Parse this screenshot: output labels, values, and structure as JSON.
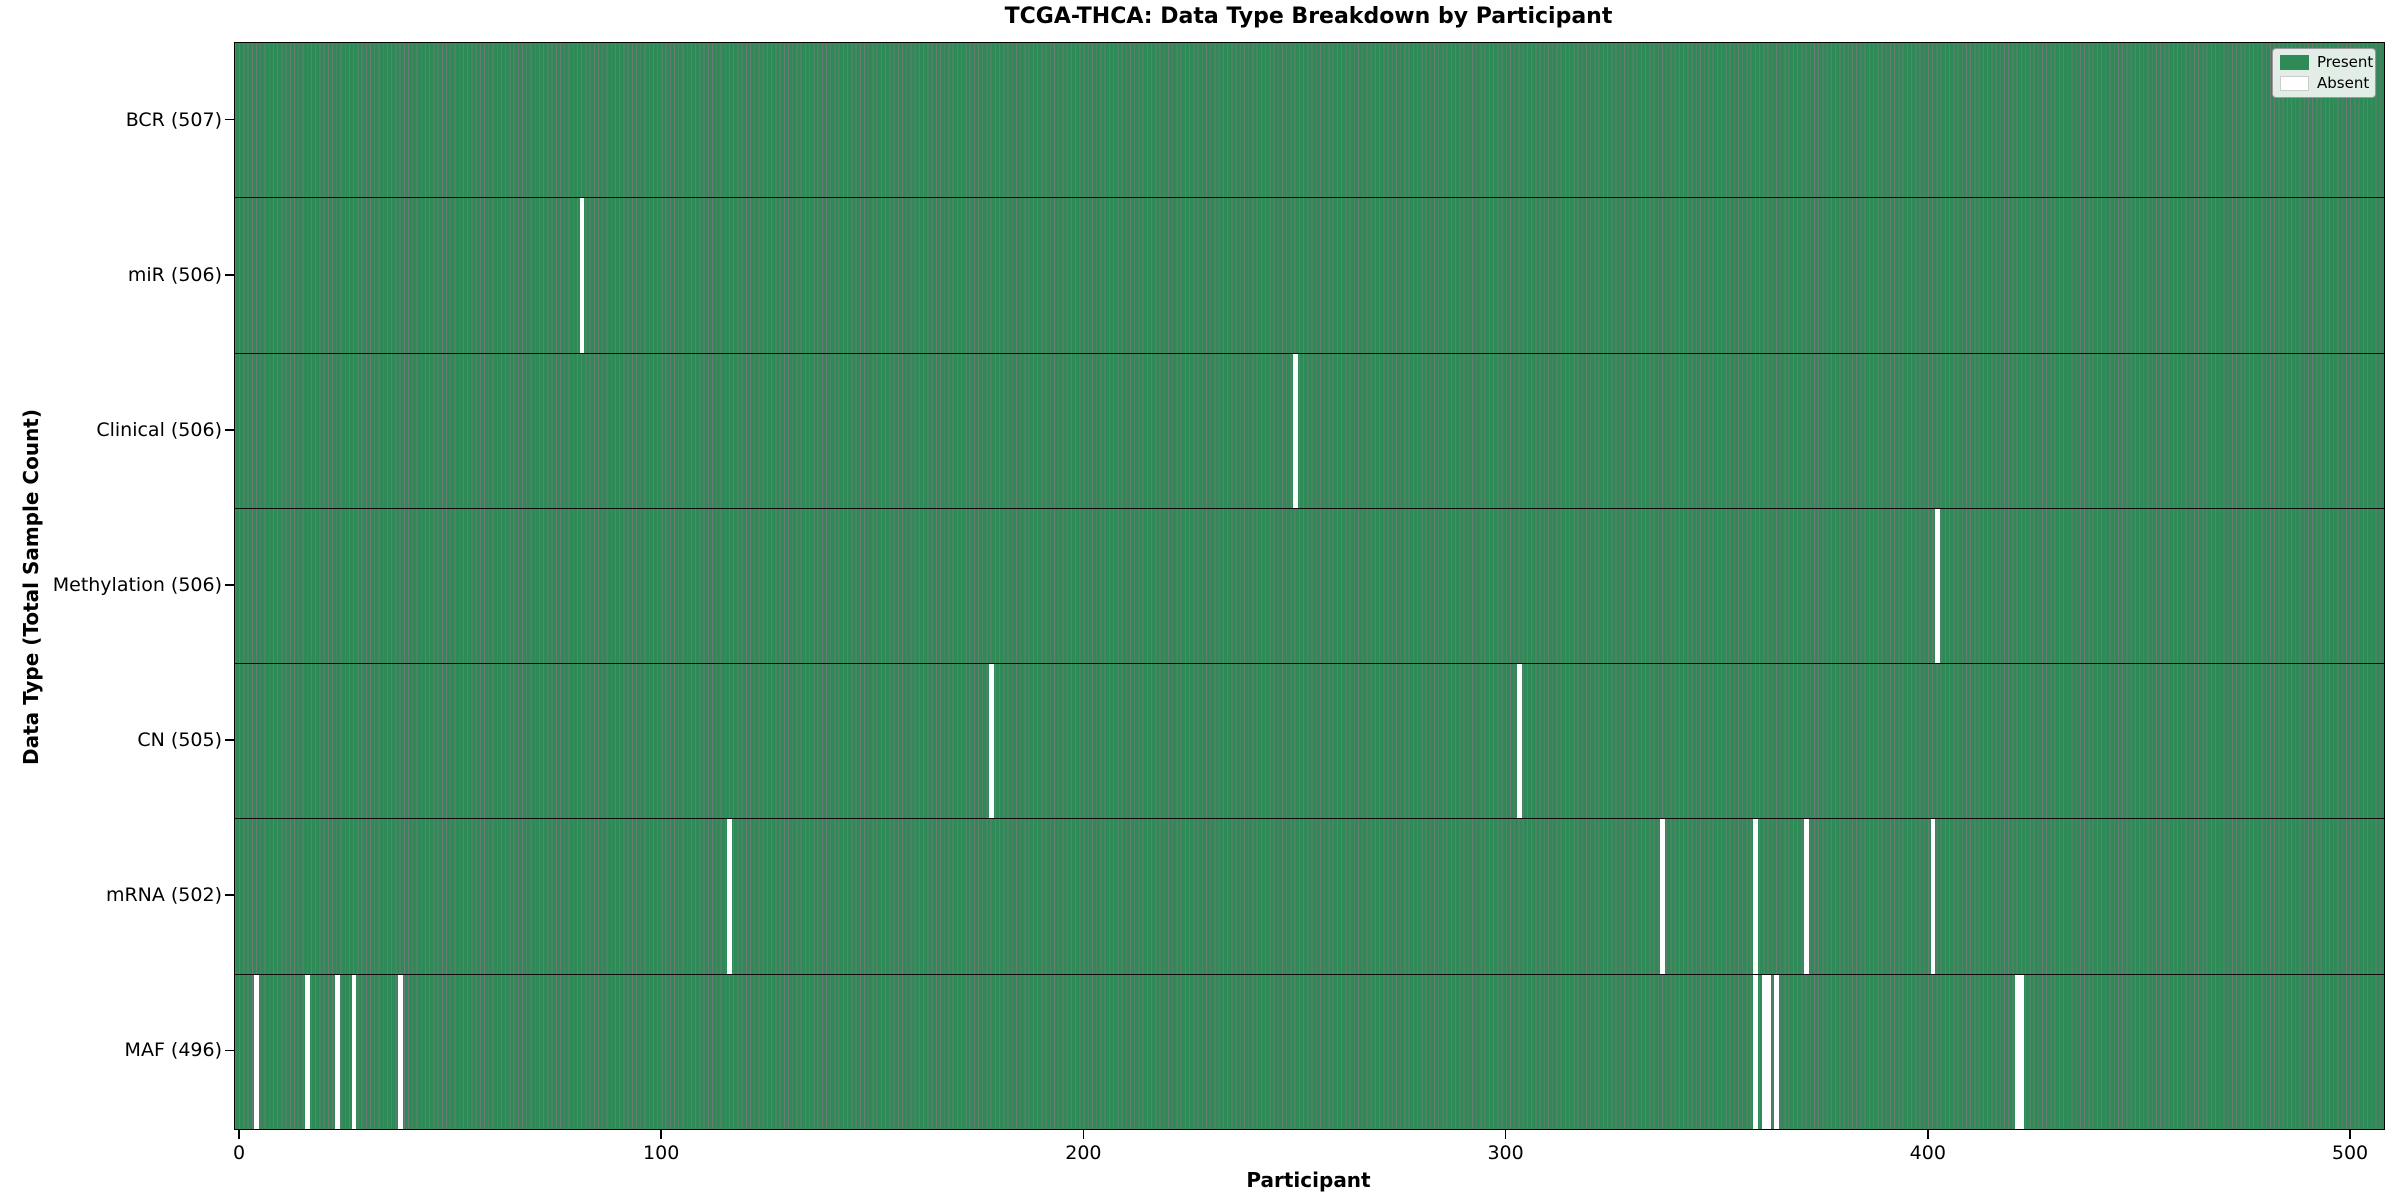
{
  "chart_data": {
    "type": "heatmap",
    "title": "TCGA-THCA: Data Type Breakdown by Participant",
    "xlabel": "Participant",
    "ylabel": "Data Type (Total Sample Count)",
    "x_ticks": [
      0,
      100,
      200,
      300,
      400,
      500
    ],
    "n_participants": 507,
    "present_color": "#2e8b57",
    "absent_color": "#ffffff",
    "legend": [
      {
        "label": "Present",
        "color": "#2e8b57"
      },
      {
        "label": "Absent",
        "color": "#ffffff"
      }
    ],
    "legend_position": "upper right",
    "grid": false,
    "rows": [
      {
        "label": "BCR (507)",
        "data_type": "BCR",
        "total_sample_count": 507,
        "absent_participants": []
      },
      {
        "label": "miR (506)",
        "data_type": "miR",
        "total_sample_count": 506,
        "absent_participants": [
          81
        ]
      },
      {
        "label": "Clinical (506)",
        "data_type": "Clinical",
        "total_sample_count": 506,
        "absent_participants": [
          250
        ]
      },
      {
        "label": "Methylation (506)",
        "data_type": "Methylation",
        "total_sample_count": 506,
        "absent_participants": [
          402
        ]
      },
      {
        "label": "CN (505)",
        "data_type": "CN",
        "total_sample_count": 505,
        "absent_participants": [
          178,
          303
        ]
      },
      {
        "label": "mRNA (502)",
        "data_type": "mRNA",
        "total_sample_count": 502,
        "absent_participants": [
          116,
          337,
          359,
          371,
          401
        ]
      },
      {
        "label": "MAF (496)",
        "data_type": "MAF",
        "total_sample_count": 496,
        "absent_participants": [
          4,
          16,
          23,
          27,
          38,
          359,
          361,
          362,
          364,
          421,
          422
        ]
      }
    ]
  }
}
